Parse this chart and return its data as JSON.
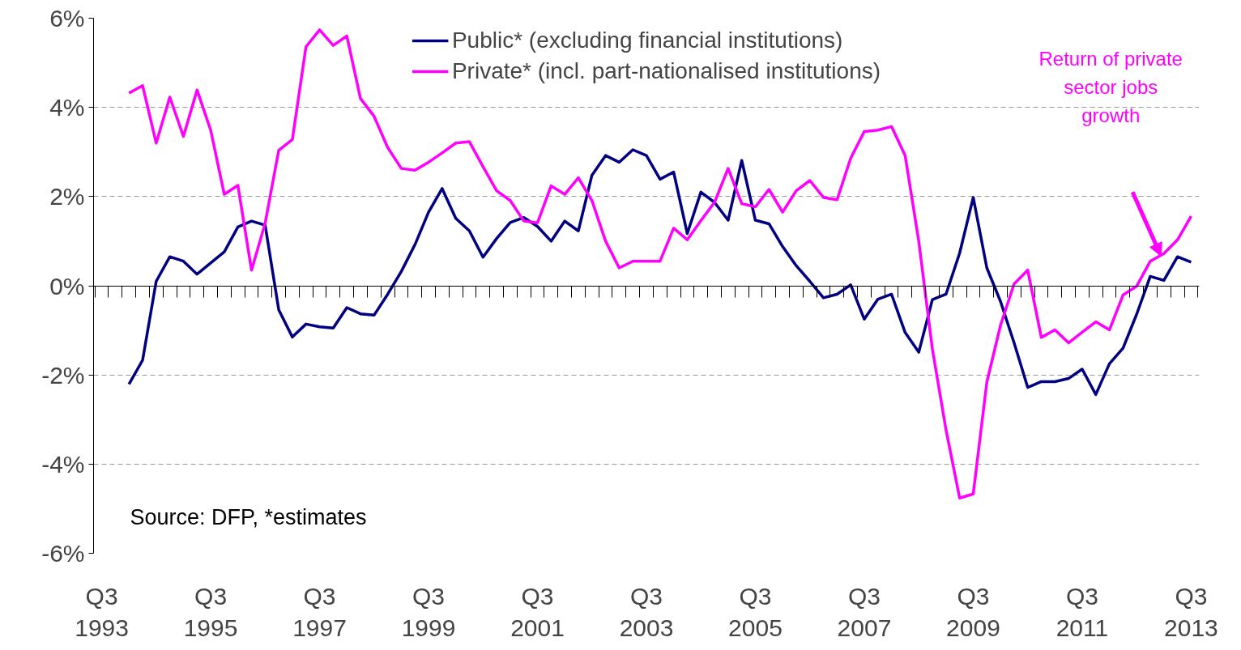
{
  "chart_data": {
    "type": "line",
    "categories": [
      "Q3\n1993",
      null,
      null,
      null,
      null,
      null,
      null,
      null,
      "Q3\n1995",
      null,
      null,
      null,
      null,
      null,
      null,
      null,
      "Q3\n1997",
      null,
      null,
      null,
      null,
      null,
      null,
      null,
      "Q3\n1999",
      null,
      null,
      null,
      null,
      null,
      null,
      null,
      "Q3\n2001",
      null,
      null,
      null,
      null,
      null,
      null,
      null,
      "Q3\n2003",
      null,
      null,
      null,
      null,
      null,
      null,
      null,
      "Q3\n2005",
      null,
      null,
      null,
      null,
      null,
      null,
      null,
      "Q3\n2007",
      null,
      null,
      null,
      null,
      null,
      null,
      null,
      "Q3\n2009",
      null,
      null,
      null,
      null,
      null,
      null,
      null,
      "Q3\n2011",
      null,
      null,
      null,
      null,
      null,
      null,
      null,
      "Q3\n2013"
    ],
    "series": [
      {
        "name": "Public* (excluding financial institutions)",
        "color": "#000080",
        "values": [
          null,
          null,
          -2.21,
          -1.67,
          0.1,
          0.65,
          0.55,
          0.26,
          0.51,
          0.76,
          1.32,
          1.45,
          1.36,
          -0.54,
          -1.15,
          -0.86,
          -0.92,
          -0.95,
          -0.49,
          -0.63,
          -0.66,
          -0.19,
          0.32,
          0.92,
          1.65,
          2.18,
          1.51,
          1.23,
          0.64,
          1.06,
          1.42,
          1.53,
          1.33,
          1.0,
          1.45,
          1.23,
          2.48,
          2.92,
          2.77,
          3.05,
          2.92,
          2.39,
          2.55,
          1.17,
          2.1,
          1.87,
          1.47,
          2.81,
          1.47,
          1.39,
          0.88,
          0.45,
          0.1,
          -0.27,
          -0.19,
          0.02,
          -0.75,
          -0.3,
          -0.19,
          -1.05,
          -1.49,
          -0.31,
          -0.19,
          0.73,
          1.98,
          0.4,
          -0.35,
          -1.28,
          -2.28,
          -2.15,
          -2.15,
          -2.08,
          -1.87,
          -2.44,
          -1.75,
          -1.4,
          -0.64,
          0.21,
          0.12,
          0.65,
          0.53
        ]
      },
      {
        "name": "Private* (incl. part-nationalised institutions)",
        "color": "#ff00ff",
        "values": [
          null,
          null,
          4.32,
          4.49,
          3.2,
          4.23,
          3.35,
          4.39,
          3.49,
          2.05,
          2.25,
          0.35,
          1.4,
          3.04,
          3.28,
          5.36,
          5.74,
          5.39,
          5.6,
          4.2,
          3.8,
          3.1,
          2.63,
          2.59,
          2.77,
          2.98,
          3.2,
          3.23,
          2.67,
          2.13,
          1.91,
          1.45,
          1.41,
          2.24,
          2.05,
          2.42,
          1.91,
          1.0,
          0.4,
          0.55,
          0.55,
          0.55,
          1.29,
          1.03,
          1.46,
          1.87,
          2.63,
          1.84,
          1.77,
          2.16,
          1.65,
          2.13,
          2.36,
          1.98,
          1.93,
          2.86,
          3.46,
          3.49,
          3.57,
          2.92,
          1.0,
          -1.42,
          -3.23,
          -4.76,
          -4.67,
          -2.16,
          -0.89,
          0.04,
          0.35,
          -1.16,
          -0.99,
          -1.28,
          -1.04,
          -0.81,
          -0.99,
          -0.21,
          -0.01,
          0.55,
          0.72,
          1.03,
          1.56
        ]
      }
    ],
    "ylim": [
      -6,
      6
    ],
    "yticks": [
      {
        "value": -6,
        "label": "-6%"
      },
      {
        "value": -4,
        "label": "-4%"
      },
      {
        "value": -2,
        "label": "-2%"
      },
      {
        "value": 0,
        "label": "0%"
      },
      {
        "value": 2,
        "label": "2%"
      },
      {
        "value": 4,
        "label": "4%"
      },
      {
        "value": 6,
        "label": "6%"
      }
    ],
    "grid": "y",
    "legend": "top",
    "line_style": "solid",
    "annotations": [
      "Return of private\nsector jobs\ngrowth",
      "Source: DFP, *estimates"
    ]
  }
}
